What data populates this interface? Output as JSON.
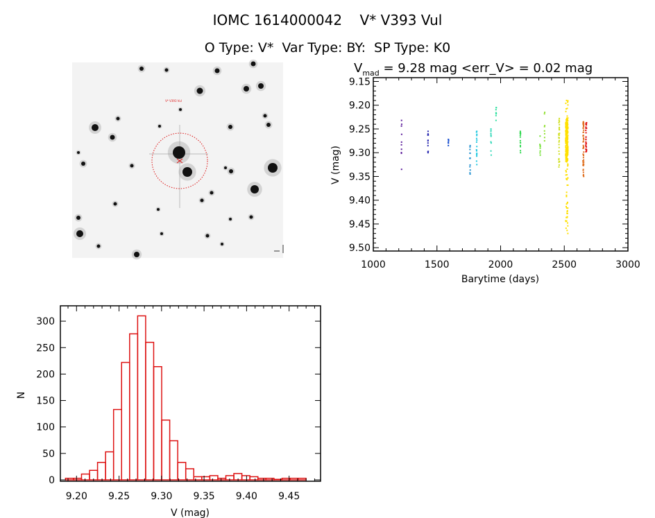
{
  "header": {
    "line1": "IOMC 1614000042    V* V393 Vul",
    "line2": "O Type: V*  Var Type: BY:  SP Type: K0"
  },
  "image_panel": {
    "target_label": "V* V393 Vul"
  },
  "colors": {
    "hist_bar": "#dd1111",
    "circle": "#dd1111",
    "axis": "#000000"
  },
  "chart_data": [
    {
      "type": "scatter",
      "title": "V_mad = 9.28 mag <err_V> = 0.02 mag",
      "title_parts": {
        "v": "V",
        "sub": "mad",
        "rest": " = 9.28 mag <err_V> = 0.02 mag"
      },
      "xlabel": "Barytime (days)",
      "ylabel": "V (mag)",
      "xlim": [
        1000,
        3000
      ],
      "ylim": [
        9.142,
        9.507
      ],
      "y_inverted": true,
      "xticks": [
        1000,
        1500,
        2000,
        2500,
        3000
      ],
      "xtick_labels": [
        "1000",
        "1500",
        "2000",
        "2500",
        "3000"
      ],
      "yticks": [
        9.15,
        9.2,
        9.25,
        9.3,
        9.35,
        9.4,
        9.45,
        9.5
      ],
      "ytick_labels": [
        "9.15",
        "9.20",
        "9.25",
        "9.30",
        "9.35",
        "9.40",
        "9.45",
        "9.50"
      ],
      "clusters": [
        {
          "x": 1222,
          "y_min": 9.232,
          "y_max": 9.335,
          "n": 10,
          "color": "#5a1a9a"
        },
        {
          "x": 1430,
          "y_min": 9.255,
          "y_max": 9.3,
          "n": 12,
          "color": "#2a2ab0"
        },
        {
          "x": 1590,
          "y_min": 9.272,
          "y_max": 9.285,
          "n": 6,
          "color": "#1a50d0"
        },
        {
          "x": 1760,
          "y_min": 9.285,
          "y_max": 9.345,
          "n": 14,
          "color": "#2090d0"
        },
        {
          "x": 1812,
          "y_min": 9.255,
          "y_max": 9.325,
          "n": 18,
          "color": "#20c8e0"
        },
        {
          "x": 1925,
          "y_min": 9.25,
          "y_max": 9.305,
          "n": 10,
          "color": "#30d8b8"
        },
        {
          "x": 1965,
          "y_min": 9.205,
          "y_max": 9.232,
          "n": 8,
          "color": "#30e0a0"
        },
        {
          "x": 2155,
          "y_min": 9.255,
          "y_max": 9.3,
          "n": 14,
          "color": "#30d850"
        },
        {
          "x": 2310,
          "y_min": 9.265,
          "y_max": 9.305,
          "n": 8,
          "color": "#70e030"
        },
        {
          "x": 2345,
          "y_min": 9.215,
          "y_max": 9.275,
          "n": 8,
          "color": "#90e030"
        },
        {
          "x": 2460,
          "y_min": 9.228,
          "y_max": 9.33,
          "n": 30,
          "color": "#d0e020"
        },
        {
          "x": 2520,
          "y_min": 9.19,
          "y_max": 9.47,
          "n": 260,
          "color": "#ffe000"
        },
        {
          "x": 2650,
          "y_min": 9.235,
          "y_max": 9.35,
          "n": 50,
          "color": "#e07020"
        },
        {
          "x": 2672,
          "y_min": 9.237,
          "y_max": 9.298,
          "n": 30,
          "color": "#e01010"
        }
      ]
    },
    {
      "type": "bar",
      "subtype": "histogram",
      "title": "",
      "xlabel": "V (mag)",
      "ylabel": "N",
      "xlim": [
        9.181,
        9.487
      ],
      "ylim": [
        -2.6,
        329
      ],
      "bin_start": 9.187,
      "bin_width": 0.00943,
      "counts": [
        3,
        3,
        11,
        18,
        33,
        53,
        133,
        222,
        276,
        310,
        260,
        214,
        113,
        74,
        33,
        21,
        6,
        6,
        8,
        3,
        8,
        12,
        8,
        6,
        3,
        3,
        1,
        3,
        3,
        3
      ],
      "xticks": [
        9.2,
        9.25,
        9.3,
        9.35,
        9.4,
        9.45
      ],
      "xtick_labels": [
        "9.20",
        "9.25",
        "9.30",
        "9.35",
        "9.40",
        "9.45"
      ],
      "yticks": [
        0,
        50,
        100,
        150,
        200,
        250,
        300
      ],
      "ytick_labels": [
        "0",
        "50",
        "100",
        "150",
        "200",
        "250",
        "300"
      ]
    }
  ]
}
